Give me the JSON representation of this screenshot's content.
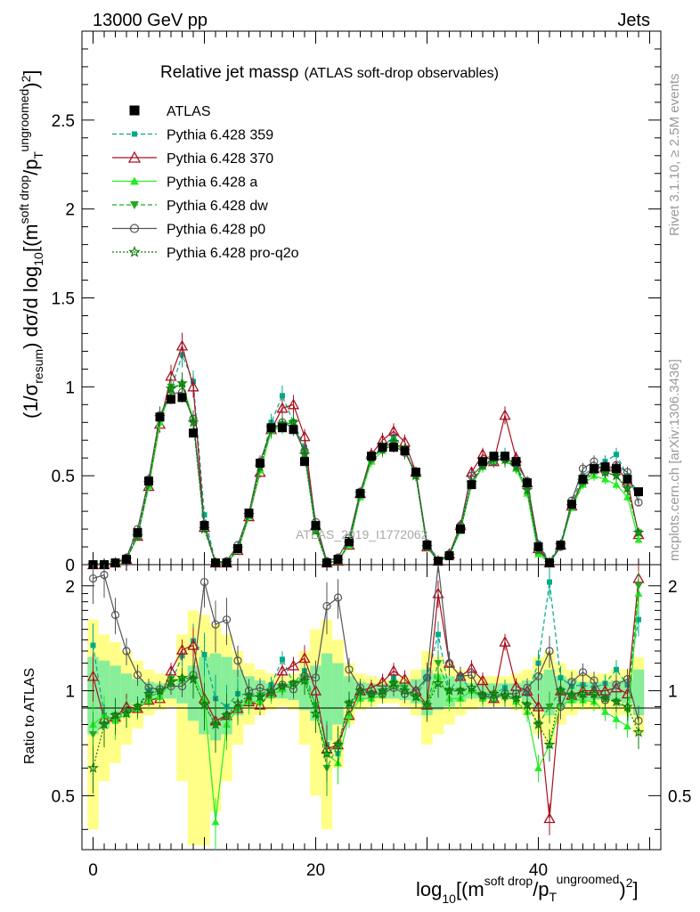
{
  "header": {
    "left": "13000 GeV pp",
    "right": "Jets"
  },
  "side_labels": {
    "rivet": "Rivet 3.1.10, ≥ 2.5M events",
    "mcplots": "mcplots.cern.ch [arXiv:1306.3436]"
  },
  "watermark": "ATLAS_2019_I1772062",
  "chart_data": {
    "type": "line",
    "title": "Relative jet massρ",
    "subtitle": "(ATLAS soft-drop observables)",
    "ylabel": "(1/σresum) dσ/d log10[(m soft drop/pT ungroomed)2]",
    "xlabel": "log10[(m soft drop/pT ungroomed)2]",
    "ratio_ylabel": "Ratio to ATLAS",
    "xlim": [
      -1,
      51
    ],
    "ylim": [
      0,
      3.0
    ],
    "ratio_ylim": [
      0.35,
      2.3
    ],
    "x_ticks": [
      "0",
      "20",
      "40"
    ],
    "y_ticks": [
      "0",
      "0.5",
      "1",
      "1.5",
      "2",
      "2.5"
    ],
    "ratio_ticks": [
      "0.5",
      "1",
      "2"
    ],
    "legend": [
      {
        "name": "ATLAS",
        "color": "#000000",
        "marker": "square",
        "dash": "none"
      },
      {
        "name": "Pythia 6.428 359",
        "color": "#00aa88",
        "marker": "smallsquare",
        "dash": "dashed"
      },
      {
        "name": "Pythia 6.428 370",
        "color": "#aa1122",
        "marker": "triangle-open",
        "dash": "solid"
      },
      {
        "name": "Pythia 6.428 a",
        "color": "#22ee22",
        "marker": "triangle",
        "dash": "solid"
      },
      {
        "name": "Pythia 6.428 dw",
        "color": "#22aa22",
        "marker": "triangle-down",
        "dash": "dashed"
      },
      {
        "name": "Pythia 6.428 p0",
        "color": "#555555",
        "marker": "circle-open",
        "dash": "solid"
      },
      {
        "name": "Pythia 6.428 pro-q2o",
        "color": "#117711",
        "marker": "star",
        "dash": "dotted"
      }
    ],
    "x": [
      0,
      1,
      2,
      3,
      4,
      5,
      6,
      7,
      8,
      9,
      10,
      11,
      12,
      13,
      14,
      15,
      16,
      17,
      18,
      19,
      20,
      21,
      22,
      23,
      24,
      25,
      26,
      27,
      28,
      29,
      30,
      31,
      32,
      33,
      34,
      35,
      36,
      37,
      38,
      39,
      40,
      41,
      42,
      43,
      44,
      45,
      46,
      47,
      48,
      49
    ],
    "series": [
      {
        "name": "ATLAS",
        "values": [
          0.0,
          0.0,
          0.01,
          0.03,
          0.18,
          0.47,
          0.83,
          0.93,
          0.94,
          0.74,
          0.22,
          0.01,
          0.01,
          0.09,
          0.29,
          0.57,
          0.77,
          0.77,
          0.76,
          0.58,
          0.22,
          0.01,
          0.03,
          0.13,
          0.4,
          0.61,
          0.66,
          0.66,
          0.64,
          0.52,
          0.11,
          0.02,
          0.05,
          0.2,
          0.45,
          0.58,
          0.61,
          0.61,
          0.58,
          0.46,
          0.1,
          0.01,
          0.11,
          0.34,
          0.48,
          0.54,
          0.55,
          0.54,
          0.48,
          0.41
        ]
      },
      {
        "name": "Pythia 6.428 359",
        "values": [
          0.0,
          0.0,
          0.01,
          0.04,
          0.17,
          0.47,
          0.82,
          0.98,
          1.18,
          1.03,
          0.28,
          0.01,
          0.01,
          0.09,
          0.28,
          0.55,
          0.8,
          0.95,
          0.8,
          0.66,
          0.2,
          0.01,
          0.02,
          0.12,
          0.4,
          0.6,
          0.66,
          0.72,
          0.65,
          0.5,
          0.12,
          0.03,
          0.05,
          0.22,
          0.45,
          0.55,
          0.6,
          0.62,
          0.55,
          0.45,
          0.12,
          0.02,
          0.12,
          0.35,
          0.5,
          0.55,
          0.58,
          0.62,
          0.5,
          0.4
        ]
      },
      {
        "name": "Pythia 6.428 370",
        "values": [
          0.0,
          0.0,
          0.01,
          0.03,
          0.16,
          0.44,
          0.79,
          1.06,
          1.23,
          1.0,
          0.21,
          0.01,
          0.01,
          0.08,
          0.27,
          0.52,
          0.76,
          0.88,
          0.9,
          0.72,
          0.22,
          0.01,
          0.02,
          0.11,
          0.4,
          0.62,
          0.7,
          0.75,
          0.69,
          0.52,
          0.1,
          0.02,
          0.06,
          0.22,
          0.52,
          0.62,
          0.58,
          0.84,
          0.6,
          0.46,
          0.09,
          0.01,
          0.11,
          0.33,
          0.48,
          0.54,
          0.55,
          0.55,
          0.47,
          0.17
        ]
      },
      {
        "name": "Pythia 6.428 a",
        "values": [
          0.0,
          0.0,
          0.01,
          0.03,
          0.16,
          0.44,
          0.8,
          0.98,
          1.02,
          0.82,
          0.21,
          0.01,
          0.01,
          0.08,
          0.27,
          0.53,
          0.75,
          0.78,
          0.8,
          0.62,
          0.19,
          0.01,
          0.02,
          0.11,
          0.38,
          0.58,
          0.64,
          0.68,
          0.64,
          0.5,
          0.1,
          0.02,
          0.05,
          0.19,
          0.45,
          0.55,
          0.58,
          0.6,
          0.54,
          0.4,
          0.06,
          0.01,
          0.1,
          0.32,
          0.45,
          0.5,
          0.48,
          0.45,
          0.38,
          0.14
        ]
      },
      {
        "name": "Pythia 6.428 dw",
        "values": [
          0.0,
          0.0,
          0.01,
          0.03,
          0.16,
          0.45,
          0.82,
          1.0,
          1.01,
          0.8,
          0.2,
          0.01,
          0.01,
          0.08,
          0.28,
          0.55,
          0.76,
          0.79,
          0.8,
          0.63,
          0.2,
          0.01,
          0.02,
          0.12,
          0.39,
          0.6,
          0.65,
          0.69,
          0.65,
          0.5,
          0.1,
          0.02,
          0.05,
          0.2,
          0.45,
          0.56,
          0.6,
          0.58,
          0.55,
          0.42,
          0.08,
          0.01,
          0.11,
          0.33,
          0.46,
          0.52,
          0.52,
          0.5,
          0.42,
          0.18
        ]
      },
      {
        "name": "Pythia 6.428 p0",
        "values": [
          0.0,
          0.0,
          0.01,
          0.04,
          0.2,
          0.48,
          0.84,
          0.96,
          0.97,
          0.82,
          0.23,
          0.01,
          0.02,
          0.11,
          0.29,
          0.58,
          0.76,
          0.8,
          0.77,
          0.64,
          0.24,
          0.02,
          0.04,
          0.15,
          0.41,
          0.6,
          0.65,
          0.67,
          0.63,
          0.52,
          0.12,
          0.02,
          0.06,
          0.22,
          0.5,
          0.56,
          0.58,
          0.6,
          0.57,
          0.47,
          0.11,
          0.01,
          0.1,
          0.36,
          0.54,
          0.58,
          0.52,
          0.56,
          0.52,
          0.35
        ]
      },
      {
        "name": "Pythia 6.428 pro-q2o",
        "values": [
          0.0,
          0.0,
          0.01,
          0.03,
          0.16,
          0.46,
          0.83,
          0.99,
          1.02,
          0.8,
          0.2,
          0.01,
          0.01,
          0.09,
          0.28,
          0.55,
          0.77,
          0.79,
          0.8,
          0.62,
          0.19,
          0.01,
          0.02,
          0.12,
          0.4,
          0.6,
          0.66,
          0.69,
          0.64,
          0.5,
          0.1,
          0.02,
          0.05,
          0.2,
          0.46,
          0.56,
          0.6,
          0.59,
          0.55,
          0.42,
          0.08,
          0.01,
          0.11,
          0.33,
          0.47,
          0.53,
          0.52,
          0.5,
          0.43,
          0.18
        ]
      }
    ],
    "ratio_series": [
      {
        "name": "Pythia 6.428 359",
        "values": [
          1.35,
          0.85,
          0.83,
          0.86,
          0.9,
          1.0,
          0.99,
          1.05,
          1.26,
          1.39,
          1.27,
          0.95,
          0.9,
          0.98,
          0.97,
          0.96,
          1.04,
          1.23,
          1.05,
          1.14,
          0.91,
          0.7,
          0.66,
          0.92,
          1.0,
          0.98,
          1.0,
          1.09,
          1.02,
          0.96,
          1.09,
          1.45,
          1.0,
          1.1,
          1.0,
          0.95,
          0.98,
          1.02,
          0.95,
          0.98,
          1.2,
          2.05,
          1.09,
          1.03,
          1.04,
          1.02,
          1.05,
          1.15,
          1.04,
          1.6
        ]
      },
      {
        "name": "Pythia 6.428 370",
        "values": [
          1.1,
          0.83,
          0.84,
          0.9,
          0.89,
          0.94,
          0.95,
          1.14,
          1.31,
          1.35,
          0.95,
          0.82,
          0.85,
          0.89,
          0.93,
          0.91,
          0.99,
          1.14,
          1.18,
          1.24,
          1.0,
          0.68,
          0.7,
          0.85,
          1.0,
          1.02,
          1.06,
          1.14,
          1.08,
          1.0,
          0.91,
          1.9,
          1.2,
          1.1,
          1.16,
          1.07,
          0.95,
          1.38,
          1.03,
          1.0,
          0.9,
          0.43,
          1.0,
          0.97,
          1.0,
          1.0,
          1.0,
          1.02,
          0.98,
          2.1
        ]
      },
      {
        "name": "Pythia 6.428 a",
        "values": [
          0.8,
          0.85,
          0.82,
          0.86,
          0.89,
          0.94,
          0.96,
          1.05,
          1.09,
          1.11,
          0.95,
          0.42,
          0.8,
          0.89,
          0.93,
          0.93,
          0.97,
          1.01,
          1.05,
          1.07,
          0.86,
          0.66,
          0.62,
          0.85,
          0.95,
          0.95,
          0.97,
          1.03,
          1.0,
          0.96,
          0.91,
          1.1,
          0.95,
          0.95,
          1.0,
          0.95,
          0.95,
          0.98,
          0.93,
          0.87,
          0.6,
          0.7,
          0.91,
          0.94,
          0.94,
          0.93,
          0.87,
          0.83,
          0.79,
          1.9
        ]
      },
      {
        "name": "Pythia 6.428 dw",
        "values": [
          0.75,
          0.8,
          0.85,
          0.87,
          0.9,
          0.96,
          0.99,
          1.08,
          1.07,
          1.08,
          0.91,
          0.8,
          0.85,
          0.89,
          0.96,
          0.97,
          0.99,
          1.03,
          1.05,
          1.09,
          0.91,
          0.6,
          0.7,
          0.92,
          0.98,
          0.98,
          0.98,
          1.05,
          1.02,
          0.96,
          0.91,
          1.2,
          1.0,
          1.0,
          1.0,
          0.97,
          0.98,
          0.95,
          0.95,
          0.91,
          0.8,
          0.9,
          1.0,
          0.97,
          0.96,
          0.96,
          0.95,
          0.93,
          0.88,
          2.0
        ]
      },
      {
        "name": "Pythia 6.428 p0",
        "values": [
          2.1,
          2.15,
          1.65,
          1.3,
          1.11,
          1.02,
          1.01,
          1.03,
          1.03,
          1.11,
          2.05,
          1.55,
          1.6,
          1.22,
          1.0,
          1.02,
          0.99,
          1.04,
          1.01,
          1.1,
          1.09,
          1.75,
          1.85,
          1.15,
          1.02,
          0.98,
          0.98,
          1.02,
          0.98,
          1.0,
          1.09,
          2.4,
          1.2,
          1.1,
          1.11,
          0.97,
          0.95,
          0.98,
          0.98,
          1.02,
          1.1,
          1.3,
          0.9,
          1.06,
          1.13,
          1.07,
          0.94,
          1.04,
          1.08,
          0.82
        ]
      },
      {
        "name": "Pythia 6.428 pro-q2o",
        "values": [
          0.6,
          0.8,
          0.85,
          0.86,
          0.9,
          0.98,
          1.0,
          1.06,
          1.09,
          1.08,
          0.91,
          0.8,
          0.85,
          0.92,
          0.97,
          0.96,
          1.0,
          1.03,
          1.05,
          1.07,
          0.86,
          0.66,
          0.7,
          0.92,
          1.0,
          0.98,
          1.0,
          1.05,
          1.0,
          0.96,
          0.91,
          1.05,
          1.0,
          1.0,
          1.02,
          0.97,
          0.98,
          0.97,
          0.95,
          0.91,
          0.8,
          0.7,
          1.0,
          0.97,
          0.98,
          0.98,
          0.95,
          0.93,
          0.9,
          0.76
        ]
      }
    ],
    "bands": {
      "inner_halfwidth": [
        0.25,
        0.22,
        0.18,
        0.12,
        0.08,
        0.06,
        0.05,
        0.05,
        0.08,
        0.18,
        0.25,
        0.28,
        0.25,
        0.15,
        0.1,
        0.07,
        0.05,
        0.05,
        0.06,
        0.12,
        0.18,
        0.28,
        0.2,
        0.1,
        0.06,
        0.05,
        0.05,
        0.05,
        0.06,
        0.08,
        0.15,
        0.12,
        0.1,
        0.07,
        0.05,
        0.05,
        0.05,
        0.05,
        0.05,
        0.07,
        0.12,
        0.15,
        0.1,
        0.08,
        0.06,
        0.06,
        0.06,
        0.07,
        0.08,
        0.15
      ],
      "outer_halfwidth": [
        0.6,
        0.45,
        0.38,
        0.3,
        0.22,
        0.15,
        0.12,
        0.1,
        0.45,
        0.7,
        0.65,
        0.55,
        0.45,
        0.3,
        0.2,
        0.15,
        0.12,
        0.1,
        0.12,
        0.3,
        0.5,
        0.6,
        0.4,
        0.2,
        0.12,
        0.1,
        0.08,
        0.08,
        0.1,
        0.15,
        0.3,
        0.25,
        0.2,
        0.15,
        0.12,
        0.1,
        0.1,
        0.1,
        0.12,
        0.15,
        0.25,
        0.3,
        0.2,
        0.15,
        0.12,
        0.12,
        0.12,
        0.15,
        0.15,
        0.25
      ]
    }
  }
}
